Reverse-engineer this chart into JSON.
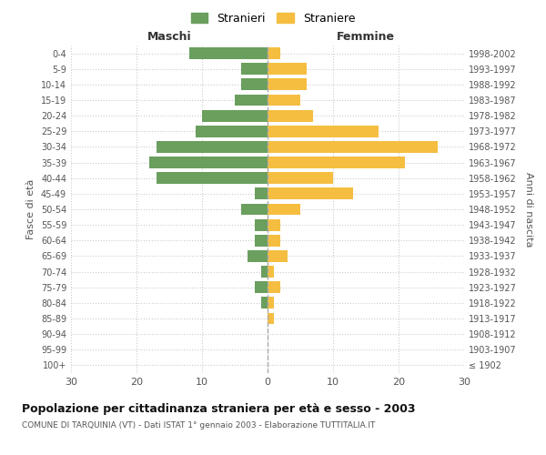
{
  "age_groups": [
    "100+",
    "95-99",
    "90-94",
    "85-89",
    "80-84",
    "75-79",
    "70-74",
    "65-69",
    "60-64",
    "55-59",
    "50-54",
    "45-49",
    "40-44",
    "35-39",
    "30-34",
    "25-29",
    "20-24",
    "15-19",
    "10-14",
    "5-9",
    "0-4"
  ],
  "birth_years": [
    "≤ 1902",
    "1903-1907",
    "1908-1912",
    "1913-1917",
    "1918-1922",
    "1923-1927",
    "1928-1932",
    "1933-1937",
    "1938-1942",
    "1943-1947",
    "1948-1952",
    "1953-1957",
    "1958-1962",
    "1963-1967",
    "1968-1972",
    "1973-1977",
    "1978-1982",
    "1983-1987",
    "1988-1992",
    "1993-1997",
    "1998-2002"
  ],
  "maschi": [
    0,
    0,
    0,
    0,
    1,
    2,
    1,
    3,
    2,
    2,
    4,
    2,
    17,
    18,
    17,
    11,
    10,
    5,
    4,
    4,
    12
  ],
  "femmine": [
    0,
    0,
    0,
    1,
    1,
    2,
    1,
    3,
    2,
    2,
    5,
    13,
    10,
    21,
    26,
    17,
    7,
    5,
    6,
    6,
    2
  ],
  "color_maschi": "#6a9f5e",
  "color_femmine": "#f5be41",
  "title": "Popolazione per cittadinanza straniera per età e sesso - 2003",
  "subtitle": "COMUNE DI TARQUINIA (VT) - Dati ISTAT 1° gennaio 2003 - Elaborazione TUTTITALIA.IT",
  "xlabel_left": "Maschi",
  "xlabel_right": "Femmine",
  "ylabel_left": "Fasce di età",
  "ylabel_right": "Anni di nascita",
  "legend_maschi": "Stranieri",
  "legend_femmine": "Straniere",
  "xlim": 30,
  "background_color": "#ffffff",
  "grid_color": "#cccccc"
}
